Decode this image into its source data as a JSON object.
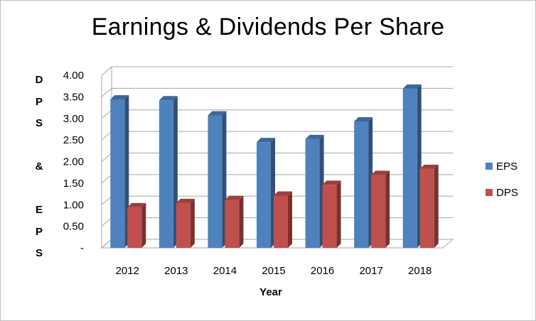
{
  "chart_data": {
    "type": "bar",
    "title": "Earnings & Dividends Per Share",
    "xlabel": "Year",
    "ylabel": "DPS & EPS",
    "ylabel_letters": [
      "D",
      "P",
      "S",
      "",
      "&",
      "",
      "E",
      "P",
      "S"
    ],
    "categories": [
      "2012",
      "2013",
      "2014",
      "2015",
      "2016",
      "2017",
      "2018"
    ],
    "series": [
      {
        "name": "EPS",
        "color": "#4f81bd",
        "values": [
          3.44,
          3.42,
          3.07,
          2.45,
          2.52,
          2.93,
          3.69
        ]
      },
      {
        "name": "DPS",
        "color": "#c0504d",
        "values": [
          0.94,
          1.04,
          1.11,
          1.21,
          1.46,
          1.69,
          1.83
        ]
      }
    ],
    "ylim": [
      0,
      4
    ],
    "yticks": [
      4.0,
      3.5,
      3.0,
      2.5,
      2.0,
      1.5,
      1.0,
      0.5,
      0
    ],
    "ytick_labels": [
      "4.00",
      "3.50",
      "3.00",
      "2.50",
      "2.00",
      "1.50",
      "1.00",
      "0.50",
      "-"
    ],
    "grid": true,
    "legend_position": "right",
    "style": "3d-clustered"
  }
}
